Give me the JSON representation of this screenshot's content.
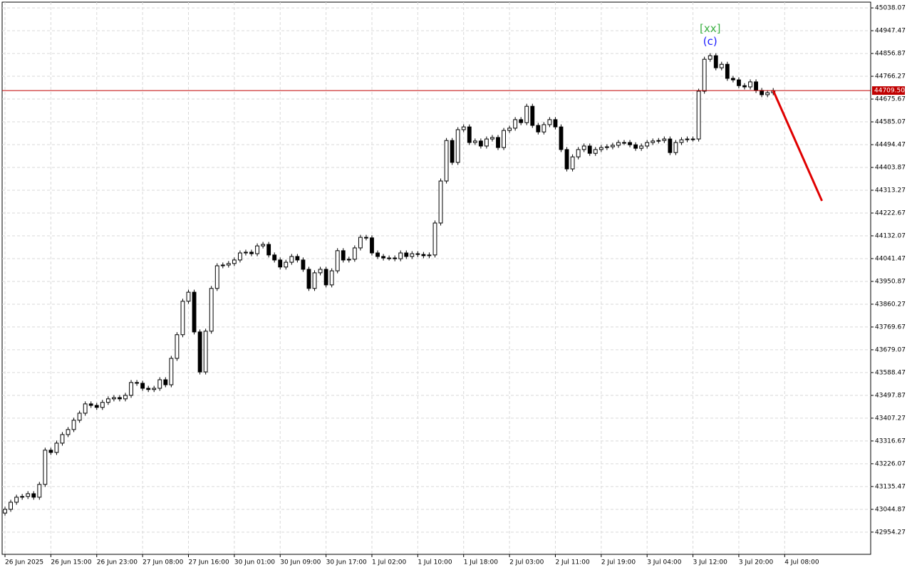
{
  "chart_data": {
    "type": "candlestick",
    "open": [
      43030,
      43045,
      43073,
      43093,
      43096,
      43107,
      43093,
      43144,
      43280,
      43271,
      43308,
      43342,
      43362,
      43399,
      43427,
      43464,
      43458,
      43450,
      43470,
      43484,
      43489,
      43484,
      43498,
      43549,
      43546,
      43526,
      43521,
      43526,
      43560,
      43540,
      43645,
      43739,
      43872,
      43908,
      43750,
      43591,
      43753,
      43923,
      44013,
      44016,
      44022,
      44036,
      44064,
      44067,
      44061,
      44092,
      44098,
      44056,
      44036,
      44008,
      44027,
      44050,
      44036,
      43999,
      43923,
      43985,
      43999,
      43937,
      43993,
      44073,
      44036,
      44039,
      44084,
      44126,
      44124,
      44064,
      44050,
      44044,
      44044,
      44041,
      44064,
      44050,
      44061,
      44058,
      44053,
      44056,
      44183,
      44350,
      44511,
      44424,
      44554,
      44565,
      44503,
      44509,
      44489,
      44517,
      44523,
      44483,
      44551,
      44560,
      44594,
      44582,
      44647,
      44571,
      44545,
      44574,
      44594,
      44565,
      44475,
      44398,
      44446,
      44475,
      44489,
      44460,
      44475,
      44483,
      44486,
      44492,
      44503,
      44503,
      44494,
      44480,
      44489,
      44503,
      44509,
      44511,
      44517,
      44463,
      44503,
      44514,
      44517,
      44517,
      44707,
      44834,
      44848,
      44800,
      44814,
      44758,
      44752,
      44729,
      44724,
      44744,
      44710,
      44693,
      44701
    ],
    "high": [
      43055,
      43083,
      43103,
      43106,
      43117,
      43117,
      43154,
      43290,
      43290,
      43318,
      43352,
      43372,
      43409,
      43437,
      43474,
      43474,
      43468,
      43480,
      43494,
      43499,
      43499,
      43508,
      43559,
      43559,
      43556,
      43536,
      43536,
      43570,
      43570,
      43655,
      43749,
      43882,
      43918,
      43918,
      43760,
      43763,
      43933,
      44023,
      44026,
      44032,
      44046,
      44074,
      44077,
      44077,
      44102,
      44108,
      44108,
      44066,
      44046,
      44037,
      44060,
      44060,
      44046,
      44009,
      43995,
      44009,
      44009,
      44003,
      44083,
      44083,
      44049,
      44094,
      44136,
      44136,
      44134,
      44074,
      44060,
      44054,
      44054,
      44074,
      44074,
      44071,
      44071,
      44068,
      44066,
      44193,
      44360,
      44521,
      44521,
      44564,
      44575,
      44575,
      44519,
      44519,
      44527,
      44533,
      44533,
      44561,
      44570,
      44604,
      44604,
      44657,
      44657,
      44581,
      44584,
      44604,
      44604,
      44575,
      44485,
      44456,
      44485,
      44499,
      44499,
      44485,
      44493,
      44496,
      44502,
      44513,
      44513,
      44513,
      44504,
      44499,
      44513,
      44519,
      44521,
      44527,
      44527,
      44513,
      44524,
      44527,
      44527,
      44717,
      44844,
      44858,
      44858,
      44824,
      44824,
      44768,
      44762,
      44739,
      44754,
      44754,
      44720,
      44711,
      44719.5
    ],
    "low": [
      43020,
      43035,
      43063,
      43083,
      43086,
      43083,
      43083,
      43134,
      43261,
      43261,
      43298,
      43332,
      43352,
      43389,
      43417,
      43448,
      43440,
      43440,
      43460,
      43474,
      43474,
      43474,
      43488,
      43536,
      43516,
      43511,
      43511,
      43516,
      43530,
      43530,
      43635,
      43729,
      43862,
      43740,
      43581,
      43581,
      43743,
      43913,
      44003,
      44006,
      44012,
      44026,
      44054,
      44051,
      44051,
      44082,
      44046,
      44026,
      43998,
      43998,
      44017,
      44026,
      43989,
      43913,
      43913,
      43975,
      43927,
      43927,
      43983,
      44026,
      44026,
      44029,
      44074,
      44114,
      44054,
      44040,
      44034,
      44034,
      44031,
      44031,
      44040,
      44040,
      44048,
      44043,
      44043,
      44046,
      44173,
      44340,
      44414,
      44414,
      44544,
      44493,
      44493,
      44479,
      44479,
      44507,
      44473,
      44473,
      44541,
      44550,
      44572,
      44572,
      44561,
      44535,
      44535,
      44564,
      44555,
      44465,
      44388,
      44388,
      44436,
      44465,
      44450,
      44450,
      44465,
      44473,
      44476,
      44482,
      44493,
      44484,
      44470,
      44470,
      44479,
      44493,
      44499,
      44501,
      44453,
      44453,
      44493,
      44504,
      44507,
      44507,
      44697,
      44824,
      44790,
      44790,
      44748,
      44742,
      44719,
      44714,
      44714,
      44700,
      44683,
      44683,
      44691
    ],
    "close": [
      43045,
      43073,
      43093,
      43096,
      43107,
      43093,
      43144,
      43280,
      43271,
      43308,
      43342,
      43362,
      43399,
      43427,
      43464,
      43458,
      43450,
      43470,
      43484,
      43489,
      43484,
      43498,
      43549,
      43546,
      43526,
      43521,
      43526,
      43560,
      43540,
      43645,
      43739,
      43872,
      43908,
      43750,
      43591,
      43753,
      43923,
      44013,
      44016,
      44022,
      44036,
      44064,
      44067,
      44061,
      44092,
      44098,
      44056,
      44036,
      44008,
      44027,
      44050,
      44036,
      43999,
      43923,
      43985,
      43999,
      43937,
      43993,
      44073,
      44036,
      44039,
      44084,
      44126,
      44124,
      44064,
      44050,
      44044,
      44044,
      44041,
      44064,
      44050,
      44061,
      44058,
      44053,
      44056,
      44183,
      44350,
      44511,
      44424,
      44554,
      44565,
      44503,
      44509,
      44489,
      44517,
      44523,
      44483,
      44551,
      44560,
      44594,
      44582,
      44647,
      44571,
      44545,
      44574,
      44594,
      44565,
      44475,
      44398,
      44446,
      44475,
      44489,
      44460,
      44475,
      44483,
      44486,
      44492,
      44503,
      44503,
      44494,
      44480,
      44489,
      44503,
      44509,
      44511,
      44517,
      44463,
      44503,
      44514,
      44517,
      44517,
      44707,
      44834,
      44848,
      44800,
      44814,
      44758,
      44752,
      44729,
      44724,
      44744,
      44710,
      44693,
      44701,
      44709.5
    ],
    "up_color": "#ffffff",
    "down_color": "#000000",
    "xlim": [
      -0.5,
      151
    ],
    "xticks": [
      {
        "value": 0,
        "label": "26 Jun 2025"
      },
      {
        "value": 8,
        "label": "26 Jun 15:00"
      },
      {
        "value": 16,
        "label": "26 Jun 23:00"
      },
      {
        "value": 24,
        "label": "27 Jun 08:00"
      },
      {
        "value": 32,
        "label": "27 Jun 16:00"
      },
      {
        "value": 40,
        "label": "30 Jun 01:00"
      },
      {
        "value": 48,
        "label": "30 Jun 09:00"
      },
      {
        "value": 56,
        "label": "30 Jun 17:00"
      },
      {
        "value": 64,
        "label": "1 Jul 02:00"
      },
      {
        "value": 72,
        "label": "1 Jul 10:00"
      },
      {
        "value": 80,
        "label": "1 Jul 18:00"
      },
      {
        "value": 88,
        "label": "2 Jul 03:00"
      },
      {
        "value": 96,
        "label": "2 Jul 11:00"
      },
      {
        "value": 104,
        "label": "2 Jul 19:00"
      },
      {
        "value": 112,
        "label": "3 Jul 04:00"
      },
      {
        "value": 120,
        "label": "3 Jul 12:00"
      },
      {
        "value": 128,
        "label": "3 Jul 20:00"
      },
      {
        "value": 136,
        "label": "4 Jul 08:00"
      }
    ],
    "ylim": [
      42866,
      45061
    ],
    "yticks": [
      45038.07,
      44947.47,
      44856.87,
      44766.27,
      44675.67,
      44585.07,
      44494.47,
      44403.87,
      44313.27,
      44222.67,
      44132.07,
      44041.47,
      43950.87,
      43860.27,
      43769.67,
      43679.07,
      43588.47,
      43497.87,
      43407.27,
      43316.67,
      43226.07,
      43135.47,
      43044.87,
      42954.27
    ],
    "grid": true,
    "price_line": {
      "value": 44709.5,
      "label": "44709.50",
      "color": "#c00000"
    },
    "projection": {
      "color": "#e00000",
      "x": [
        134,
        142.5
      ],
      "y": [
        44709.5,
        44271
      ]
    },
    "annotations": [
      {
        "text": "[xx]",
        "color": "#3cb043"
      },
      {
        "text": "(c)",
        "color": "#1a1aff"
      }
    ]
  }
}
